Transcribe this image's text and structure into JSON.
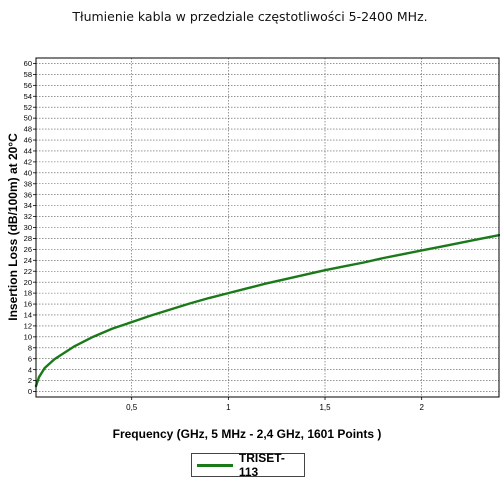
{
  "chart_data": {
    "type": "line",
    "title": "Tłumienie kabla w przedziale częstotliwości 5-2400 MHz.",
    "xlabel": "Frequency (GHz, 5 MHz - 2,4 GHz, 1601 Points )",
    "ylabel": "Insertion Loss (dB/100m) at 20°C",
    "xlim": [
      0.005,
      2.4
    ],
    "ylim": [
      -1,
      61
    ],
    "x_ticks": [
      {
        "value": 0.5,
        "label": "0,5"
      },
      {
        "value": 1.0,
        "label": "1"
      },
      {
        "value": 1.5,
        "label": "1,5"
      },
      {
        "value": 2.0,
        "label": "2"
      }
    ],
    "y_ticks": [
      0,
      2,
      4,
      6,
      8,
      10,
      12,
      14,
      16,
      18,
      20,
      22,
      24,
      26,
      28,
      30,
      32,
      34,
      36,
      38,
      40,
      42,
      44,
      46,
      48,
      50,
      52,
      54,
      56,
      58,
      60
    ],
    "grid": true,
    "legend_position": "bottom-center",
    "series": [
      {
        "name": "TRISET-113",
        "color": "#1a7a1a",
        "x": [
          0.005,
          0.02,
          0.05,
          0.1,
          0.2,
          0.3,
          0.4,
          0.5,
          0.6,
          0.7,
          0.8,
          0.9,
          1.0,
          1.1,
          1.2,
          1.3,
          1.4,
          1.5,
          1.6,
          1.7,
          1.8,
          1.9,
          2.0,
          2.1,
          2.2,
          2.3,
          2.4
        ],
        "y": [
          1.0,
          2.6,
          4.3,
          5.9,
          8.2,
          10.0,
          11.5,
          12.7,
          13.9,
          15.0,
          16.1,
          17.1,
          18.0,
          18.9,
          19.8,
          20.6,
          21.4,
          22.2,
          22.9,
          23.6,
          24.4,
          25.1,
          25.8,
          26.5,
          27.2,
          27.9,
          28.6
        ]
      }
    ]
  }
}
